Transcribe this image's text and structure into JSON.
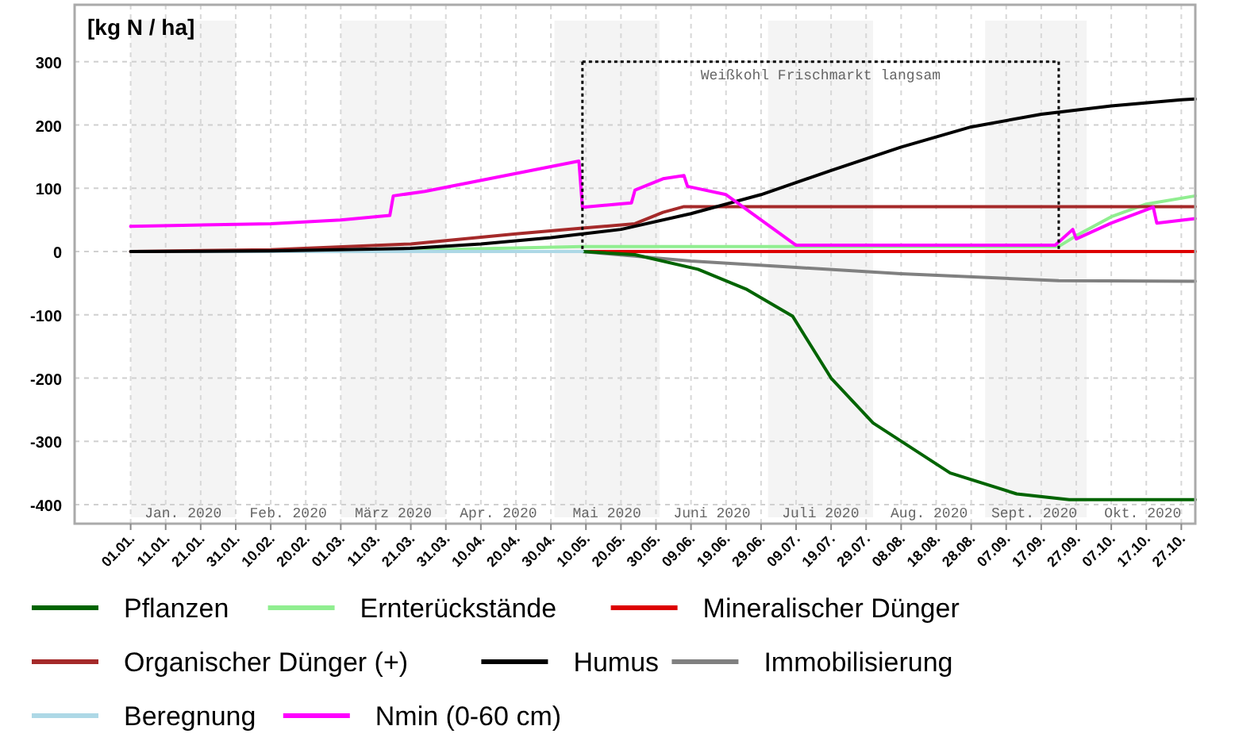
{
  "chart_data": {
    "type": "line",
    "ylabel": "[kg N / ha]",
    "xlim": [
      "2019-12-16",
      "2020-10-31"
    ],
    "ylim": [
      -430,
      390
    ],
    "yticks": [
      -400,
      -300,
      -200,
      -100,
      0,
      100,
      200,
      300
    ],
    "xticks": [
      {
        "value": "2020-01-01",
        "label": "01.01."
      },
      {
        "value": "2020-01-11",
        "label": "11.01."
      },
      {
        "value": "2020-01-21",
        "label": "21.01."
      },
      {
        "value": "2020-01-31",
        "label": "31.01."
      },
      {
        "value": "2020-02-10",
        "label": "10.02."
      },
      {
        "value": "2020-02-20",
        "label": "20.02."
      },
      {
        "value": "2020-03-01",
        "label": "01.03."
      },
      {
        "value": "2020-03-11",
        "label": "11.03."
      },
      {
        "value": "2020-03-21",
        "label": "21.03."
      },
      {
        "value": "2020-03-31",
        "label": "31.03."
      },
      {
        "value": "2020-04-10",
        "label": "10.04."
      },
      {
        "value": "2020-04-20",
        "label": "20.04."
      },
      {
        "value": "2020-04-30",
        "label": "30.04."
      },
      {
        "value": "2020-05-10",
        "label": "10.05."
      },
      {
        "value": "2020-05-20",
        "label": "20.05."
      },
      {
        "value": "2020-05-30",
        "label": "30.05."
      },
      {
        "value": "2020-06-09",
        "label": "09.06."
      },
      {
        "value": "2020-06-19",
        "label": "19.06."
      },
      {
        "value": "2020-06-29",
        "label": "29.06."
      },
      {
        "value": "2020-07-09",
        "label": "09.07."
      },
      {
        "value": "2020-07-19",
        "label": "19.07."
      },
      {
        "value": "2020-07-29",
        "label": "29.07."
      },
      {
        "value": "2020-08-08",
        "label": "08.08."
      },
      {
        "value": "2020-08-18",
        "label": "18.08."
      },
      {
        "value": "2020-08-28",
        "label": "28.08."
      },
      {
        "value": "2020-09-07",
        "label": "07.09."
      },
      {
        "value": "2020-09-17",
        "label": "17.09."
      },
      {
        "value": "2020-09-27",
        "label": "27.09."
      },
      {
        "value": "2020-10-07",
        "label": "07.10."
      },
      {
        "value": "2020-10-17",
        "label": "17.10."
      },
      {
        "value": "2020-10-27",
        "label": "27.10."
      }
    ],
    "grid": true,
    "legend": "bottom",
    "line_style": "solid",
    "marker": "none",
    "x2lim": [
      "2019-12-16",
      "2020-10-31"
    ],
    "x2ticks": [
      {
        "value": "2020-01-16",
        "label": "Jan. 2020"
      },
      {
        "value": "2020-02-15",
        "label": "Feb. 2020"
      },
      {
        "value": "2020-03-16",
        "label": "März 2020"
      },
      {
        "value": "2020-04-15",
        "label": "Apr. 2020"
      },
      {
        "value": "2020-05-16",
        "label": "Mai 2020"
      },
      {
        "value": "2020-06-15",
        "label": "Juni 2020"
      },
      {
        "value": "2020-07-16",
        "label": "Juli 2020"
      },
      {
        "value": "2020-08-16",
        "label": "Aug. 2020"
      },
      {
        "value": "2020-09-15",
        "label": "Sept. 2020"
      },
      {
        "value": "2020-10-16",
        "label": "Okt. 2020"
      }
    ],
    "bands": [
      {
        "axis": "x",
        "from": "2020-01-01",
        "to": "2020-01-31",
        "color": "#f4f4f4"
      },
      {
        "axis": "x",
        "from": "2020-03-01",
        "to": "2020-03-31",
        "color": "#f4f4f4"
      },
      {
        "axis": "x",
        "from": "2020-05-01",
        "to": "2020-05-31",
        "color": "#f4f4f4"
      },
      {
        "axis": "x",
        "from": "2020-07-01",
        "to": "2020-07-31",
        "color": "#f4f4f4"
      },
      {
        "axis": "x",
        "from": "2020-09-01",
        "to": "2020-09-30",
        "color": "#f4f4f4"
      }
    ],
    "ref_lines": [
      {
        "axis": "x",
        "value": "2020-05-09",
        "color": "#000000",
        "line_style": "dotted"
      },
      {
        "axis": "x",
        "value": "2020-09-22",
        "color": "#000000",
        "line_style": "dotted"
      },
      {
        "axis": "y",
        "value": 300,
        "color": "#000000",
        "line_style": "dotted"
      }
    ],
    "annotations": [
      "Weißkohl Frischmarkt langsam"
    ],
    "series": [
      {
        "name": "Mineralischer Dünger",
        "color": "#dd0000",
        "x": [
          "2020-05-09",
          "2020-10-31"
        ],
        "values": [
          0,
          0
        ]
      },
      {
        "name": "Immobilisierung",
        "color": "#808080",
        "x": [
          "2020-05-09",
          "2020-06-09",
          "2020-07-09",
          "2020-08-08",
          "2020-09-22",
          "2020-10-31"
        ],
        "values": [
          0,
          -15,
          -25,
          -35,
          -46,
          -47
        ]
      },
      {
        "name": "Ernterückstände",
        "color": "#90ee90",
        "x": [
          "2020-03-01",
          "2020-05-09",
          "2020-09-22",
          "2020-09-27",
          "2020-10-07",
          "2020-10-17",
          "2020-10-31"
        ],
        "values": [
          0,
          8,
          8,
          25,
          55,
          75,
          88
        ]
      },
      {
        "name": "Pflanzen",
        "color": "#006400",
        "x": [
          "2020-05-09",
          "2020-05-24",
          "2020-06-11",
          "2020-06-25",
          "2020-07-08",
          "2020-07-19",
          "2020-07-31",
          "2020-08-22",
          "2020-09-10",
          "2020-09-25",
          "2020-10-31"
        ],
        "values": [
          0,
          -5,
          -28,
          -60,
          -102,
          -200,
          -271,
          -350,
          -383,
          -392,
          -392
        ]
      },
      {
        "name": "Beregnung",
        "color": "#add8e6",
        "x": [
          "2020-01-01",
          "2020-05-09"
        ],
        "values": [
          0,
          0
        ]
      },
      {
        "name": "Organischer Dünger (+)",
        "color": "#a52a2a",
        "x": [
          "2020-01-01",
          "2020-02-10",
          "2020-03-21",
          "2020-04-20",
          "2020-05-09",
          "2020-05-24",
          "2020-06-01",
          "2020-06-07",
          "2020-10-31"
        ],
        "values": [
          0,
          3,
          12,
          28,
          37,
          44,
          62,
          71,
          71
        ]
      },
      {
        "name": "Humus",
        "color": "#000000",
        "x": [
          "2020-01-01",
          "2020-02-10",
          "2020-03-21",
          "2020-04-10",
          "2020-04-30",
          "2020-05-20",
          "2020-06-09",
          "2020-06-29",
          "2020-07-19",
          "2020-08-08",
          "2020-08-28",
          "2020-09-17",
          "2020-10-07",
          "2020-10-27",
          "2020-10-31"
        ],
        "values": [
          0,
          1,
          5,
          12,
          22,
          35,
          60,
          90,
          128,
          165,
          197,
          217,
          230,
          240,
          241
        ]
      },
      {
        "name": "Nmin (0-60 cm)",
        "color": "#ff00ff",
        "x": [
          "2020-01-01",
          "2020-02-10",
          "2020-03-01",
          "2020-03-15",
          "2020-03-16",
          "2020-03-25",
          "2020-05-08",
          "2020-05-09",
          "2020-05-23",
          "2020-05-24",
          "2020-06-01",
          "2020-06-07",
          "2020-06-08",
          "2020-06-19",
          "2020-07-09",
          "2020-09-21",
          "2020-09-26",
          "2020-09-27",
          "2020-10-07",
          "2020-10-19",
          "2020-10-20",
          "2020-10-31"
        ],
        "values": [
          40,
          44,
          50,
          57,
          88,
          95,
          143,
          70,
          77,
          97,
          115,
          120,
          103,
          90,
          10,
          10,
          35,
          20,
          45,
          70,
          45,
          52
        ]
      }
    ]
  }
}
